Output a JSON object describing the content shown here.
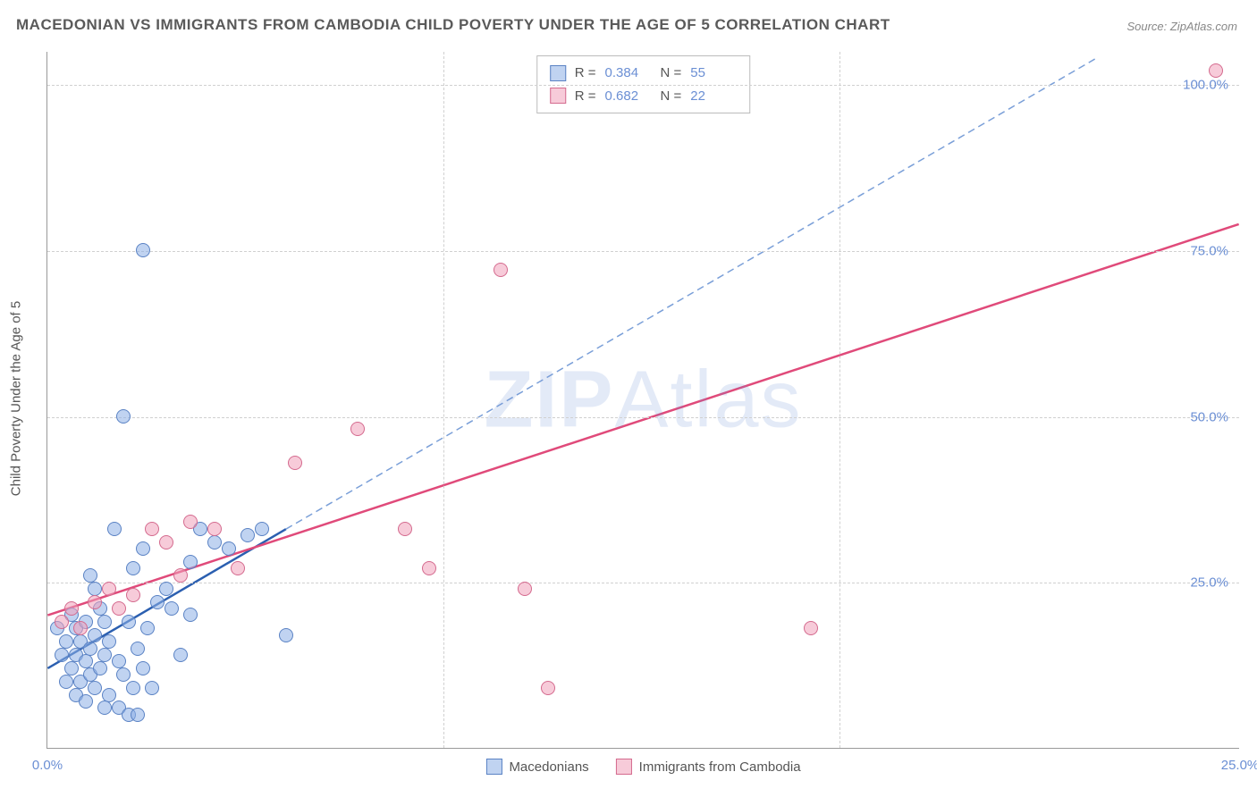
{
  "title": "MACEDONIAN VS IMMIGRANTS FROM CAMBODIA CHILD POVERTY UNDER THE AGE OF 5 CORRELATION CHART",
  "source_prefix": "Source: ",
  "source_name": "ZipAtlas.com",
  "y_axis_label": "Child Poverty Under the Age of 5",
  "chart": {
    "type": "scatter",
    "xlim": [
      0,
      25
    ],
    "ylim": [
      0,
      105
    ],
    "x_ticks": [
      0,
      25
    ],
    "x_tick_labels": [
      "0.0%",
      "25.0%"
    ],
    "y_ticks": [
      25,
      50,
      75,
      100
    ],
    "y_tick_labels": [
      "25.0%",
      "50.0%",
      "75.0%",
      "100.0%"
    ],
    "grid_color": "#d0d0d0",
    "axis_color": "#999999",
    "background_color": "#ffffff",
    "tick_label_color": "#6b8fd4",
    "marker_radius": 8,
    "marker_stroke_width": 1.5
  },
  "watermark": {
    "bold": "ZIP",
    "rest": "Atlas"
  },
  "series": [
    {
      "name": "Macedonians",
      "fill_color": "rgba(140,175,230,0.55)",
      "stroke_color": "#5a82c4",
      "R": "0.384",
      "N": "55",
      "trend": {
        "x1": 0,
        "y1": 12,
        "x2": 5,
        "y2": 33,
        "dash_x2": 22,
        "dash_y2": 104,
        "solid_color": "#2b5fb0",
        "solid_width": 2.5,
        "dash_color": "#7a9fd8",
        "dash_width": 1.5,
        "dash_pattern": "8 5"
      },
      "points": [
        [
          0.2,
          18
        ],
        [
          0.3,
          14
        ],
        [
          0.4,
          16
        ],
        [
          0.5,
          20
        ],
        [
          0.5,
          12
        ],
        [
          0.6,
          18
        ],
        [
          0.6,
          14
        ],
        [
          0.7,
          10
        ],
        [
          0.7,
          16
        ],
        [
          0.8,
          13
        ],
        [
          0.8,
          19
        ],
        [
          0.9,
          11
        ],
        [
          0.9,
          15
        ],
        [
          1.0,
          9
        ],
        [
          1.0,
          17
        ],
        [
          1.1,
          12
        ],
        [
          1.1,
          21
        ],
        [
          1.2,
          19
        ],
        [
          1.2,
          14
        ],
        [
          1.3,
          8
        ],
        [
          1.3,
          16
        ],
        [
          1.5,
          6
        ],
        [
          1.5,
          13
        ],
        [
          1.6,
          11
        ],
        [
          1.7,
          5
        ],
        [
          1.8,
          27
        ],
        [
          1.9,
          15
        ],
        [
          2.0,
          30
        ],
        [
          2.2,
          9
        ],
        [
          2.3,
          22
        ],
        [
          2.6,
          21
        ],
        [
          2.8,
          14
        ],
        [
          3.0,
          28
        ],
        [
          3.2,
          33
        ],
        [
          3.5,
          31
        ],
        [
          3.8,
          30
        ],
        [
          4.2,
          32
        ],
        [
          4.5,
          33
        ],
        [
          0.9,
          26
        ],
        [
          1.0,
          24
        ],
        [
          1.6,
          50
        ],
        [
          2.0,
          75
        ],
        [
          1.4,
          33
        ],
        [
          3.0,
          20
        ],
        [
          2.1,
          18
        ],
        [
          5.0,
          17
        ],
        [
          1.8,
          9
        ],
        [
          0.6,
          8
        ],
        [
          0.8,
          7
        ],
        [
          1.9,
          5
        ],
        [
          1.2,
          6
        ],
        [
          0.4,
          10
        ],
        [
          2.0,
          12
        ],
        [
          2.5,
          24
        ],
        [
          1.7,
          19
        ]
      ]
    },
    {
      "name": "Immigrants from Cambodia",
      "fill_color": "rgba(240,160,185,0.55)",
      "stroke_color": "#d46a8e",
      "R": "0.682",
      "N": "22",
      "trend": {
        "x1": 0,
        "y1": 20,
        "x2": 25,
        "y2": 79,
        "solid_color": "#e04a7a",
        "solid_width": 2.5
      },
      "points": [
        [
          0.3,
          19
        ],
        [
          0.5,
          21
        ],
        [
          0.7,
          18
        ],
        [
          1.0,
          22
        ],
        [
          1.3,
          24
        ],
        [
          1.5,
          21
        ],
        [
          1.8,
          23
        ],
        [
          2.2,
          33
        ],
        [
          2.5,
          31
        ],
        [
          2.8,
          26
        ],
        [
          3.0,
          34
        ],
        [
          3.5,
          33
        ],
        [
          4.0,
          27
        ],
        [
          5.2,
          43
        ],
        [
          6.5,
          48
        ],
        [
          7.5,
          33
        ],
        [
          8.0,
          27
        ],
        [
          9.5,
          72
        ],
        [
          10.0,
          24
        ],
        [
          10.5,
          9
        ],
        [
          16.0,
          18
        ],
        [
          24.5,
          102
        ]
      ]
    }
  ],
  "legend_labels": {
    "R": "R =",
    "N": "N ="
  }
}
